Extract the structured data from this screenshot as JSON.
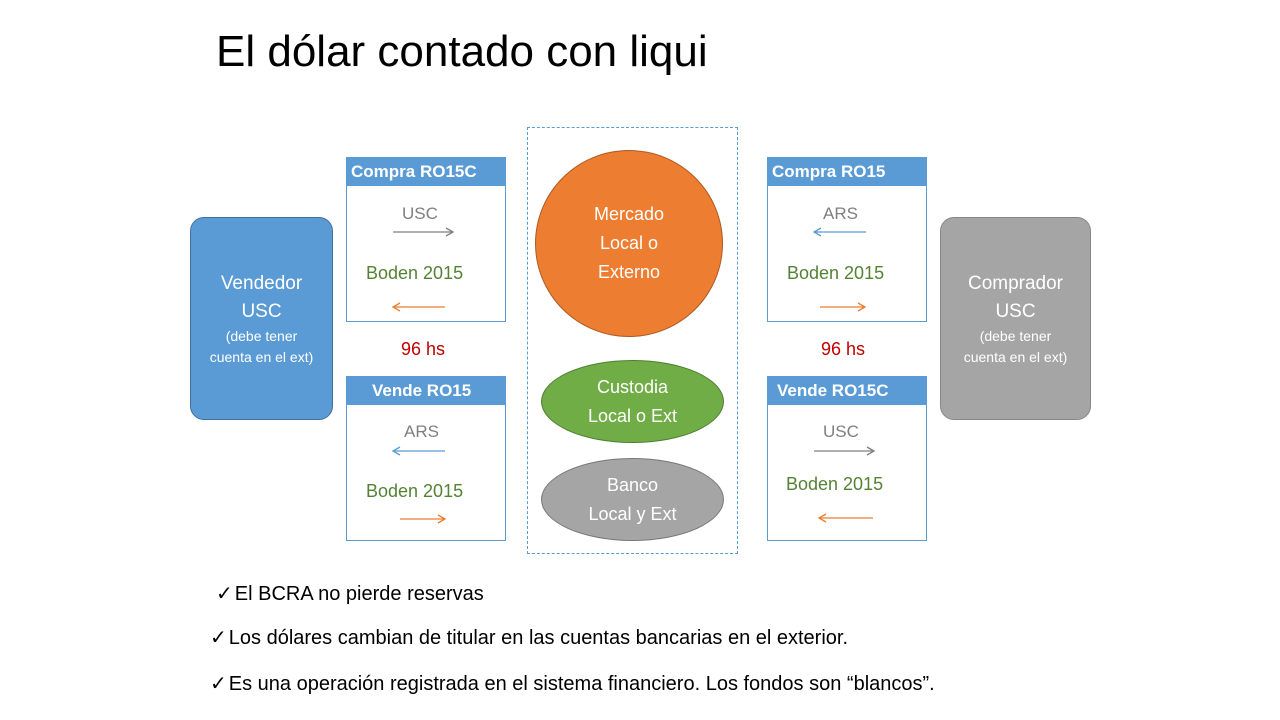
{
  "title": "El dólar contado con liqui",
  "seller": {
    "name_line1": "Vendedor",
    "name_line2": "USC",
    "note": "(debe tener cuenta en el ext)"
  },
  "buyer": {
    "name_line1": "Comprador",
    "name_line2": "USC",
    "note": "(debe tener cuenta en el ext)"
  },
  "boxes": {
    "buy_ro15c": {
      "header": "Compra RO15C",
      "currency": "USC",
      "bond": "Boden 2015"
    },
    "sell_ro15": {
      "header": "Vende RO15",
      "currency": "ARS",
      "bond": "Boden 2015"
    },
    "buy_ro15": {
      "header": "Compra RO15",
      "currency": "ARS",
      "bond": "Boden 2015"
    },
    "sell_ro15c": {
      "header": "Vende RO15C",
      "currency": "USC",
      "bond": "Boden 2015"
    }
  },
  "settlement": {
    "left": "96 hs",
    "right": "96 hs"
  },
  "market": {
    "line1": "Mercado",
    "line2": "Local o",
    "line3": "Externo"
  },
  "custody": {
    "line1": "Custodia",
    "line2": "Local o Ext"
  },
  "bank": {
    "line1": "Banco",
    "line2": "Local y Ext"
  },
  "bullets": [
    "El BCRA no pierde reservas",
    "Los dólares cambian de titular en las cuentas bancarias en el exterior.",
    "Es una operación registrada en el sistema financiero. Los fondos son “blancos”."
  ],
  "colors": {
    "blue": "#5b9bd5",
    "orange": "#ed7d31",
    "green": "#70ad47",
    "gray": "#a5a5a5",
    "bond_text": "#548235",
    "hours_text": "#c00000"
  },
  "icons": {
    "check": "check-icon",
    "arrow": "arrow-icon"
  }
}
